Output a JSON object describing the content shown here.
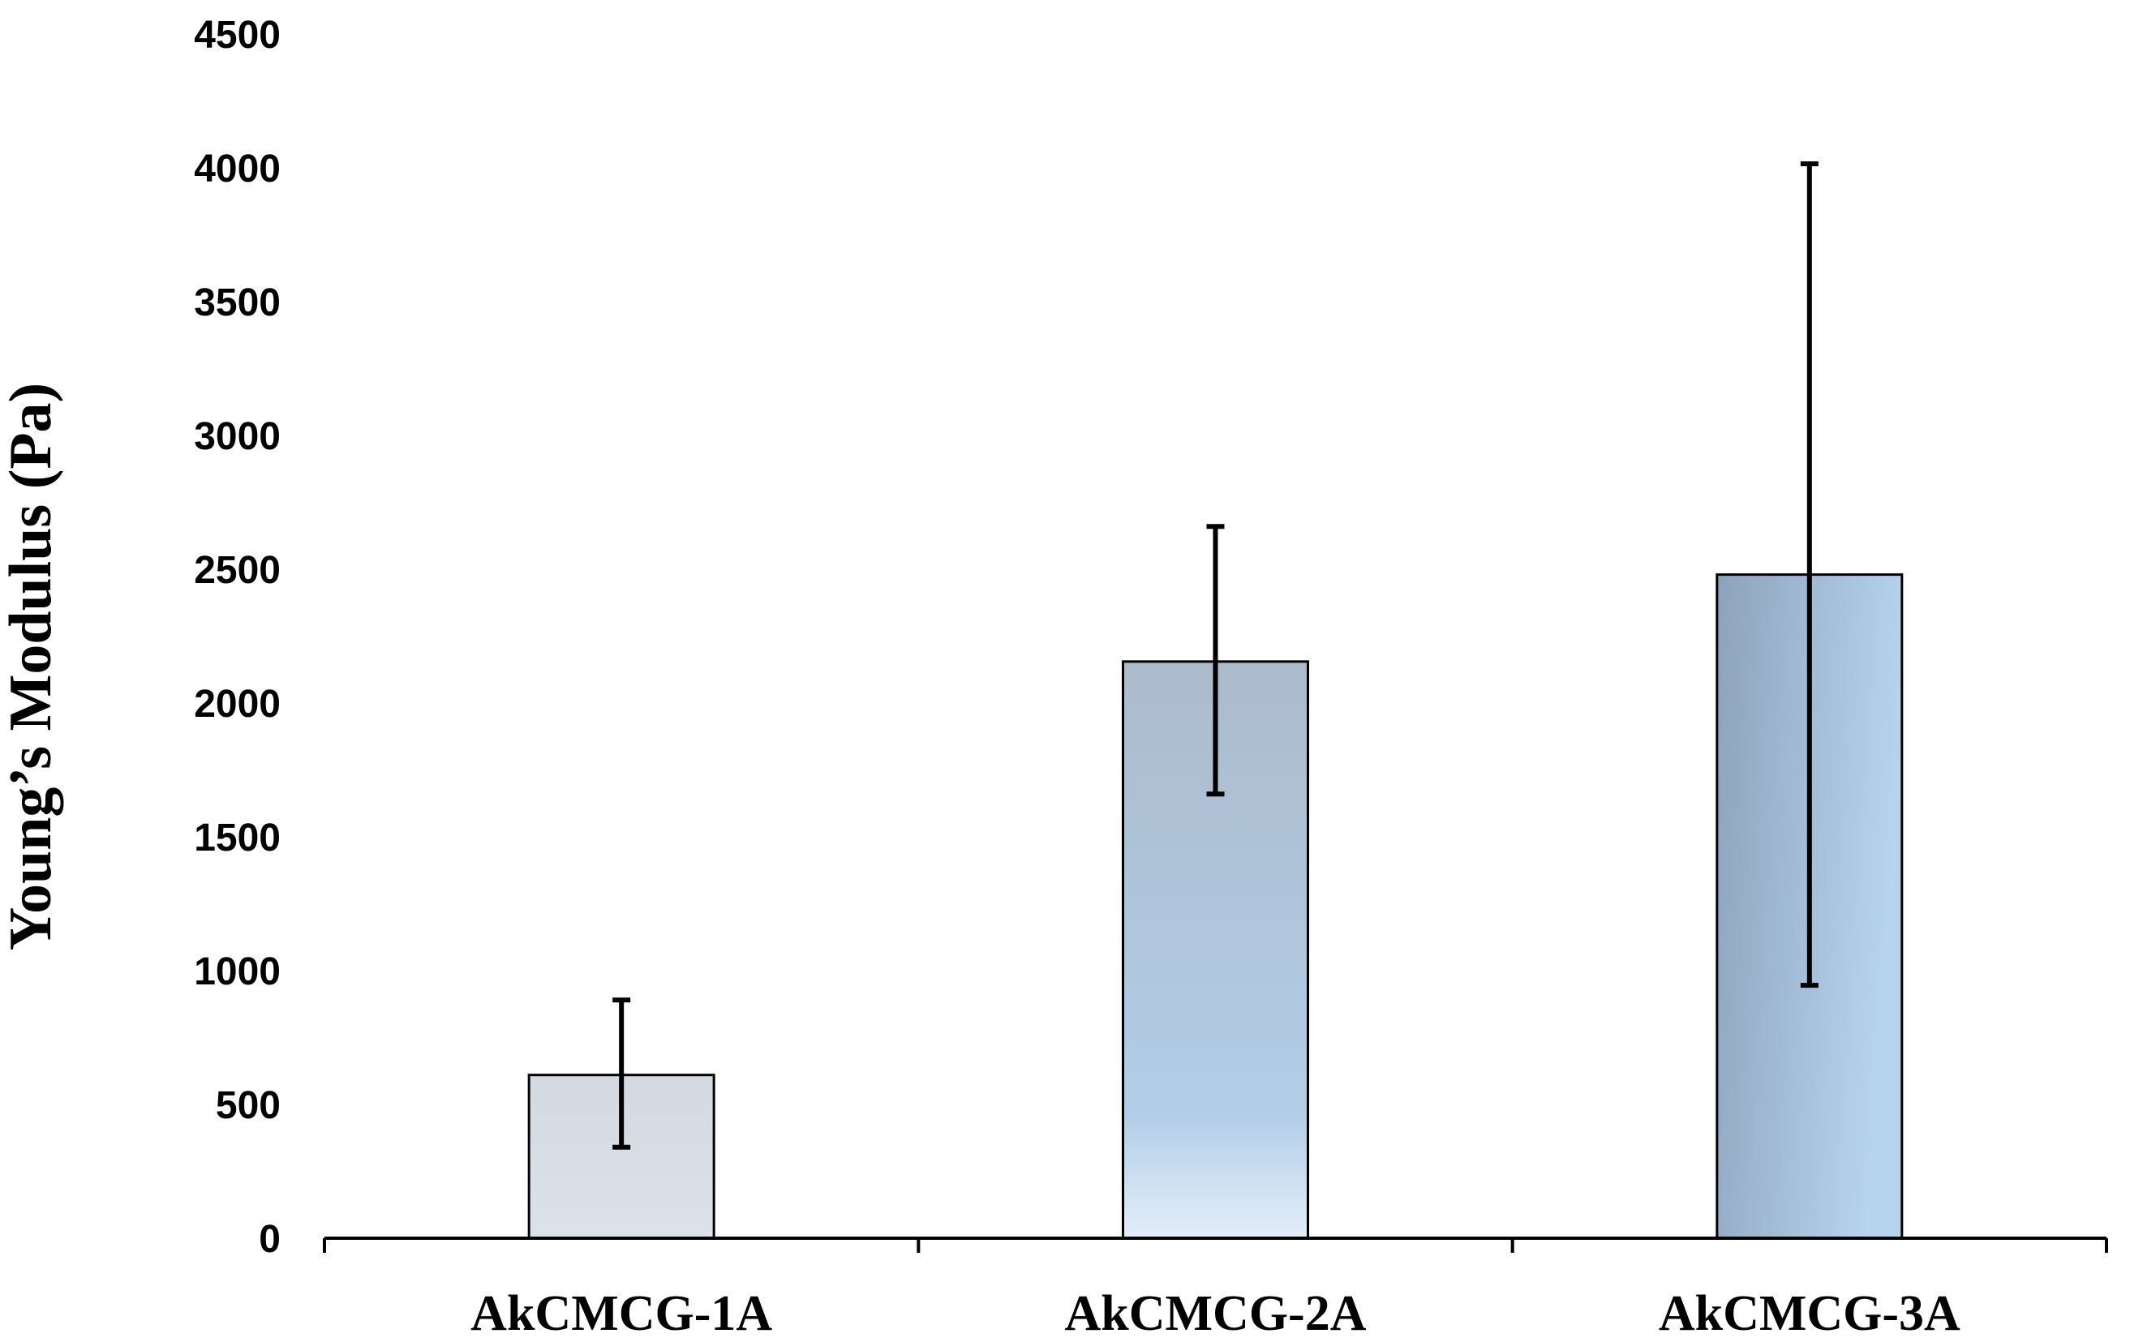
{
  "chart_data": {
    "type": "bar",
    "title": "",
    "xlabel": "",
    "ylabel": "Young’s Modulus (Pa)",
    "ylim": [
      0,
      4500
    ],
    "yticks": [
      "0",
      "500",
      "1000",
      "1500",
      "2000",
      "2500",
      "3000",
      "3500",
      "4000",
      "4500"
    ],
    "categories": [
      "AkCMCG-1A",
      "AkCMCG-2A",
      "AkCMCG-3A"
    ],
    "values": [
      610,
      2155,
      2480
    ],
    "error_low": [
      340,
      1660,
      945
    ],
    "error_high": [
      890,
      2660,
      4015
    ],
    "grid": false,
    "legend": "none",
    "colors": {
      "axis": "#000000",
      "bar_outline": "#000000",
      "error_bar": "#000000",
      "bar1_top": "#d3d9e1",
      "bar1_bottom": "#dce2ea",
      "bar2_top": "#acbbcc",
      "bar2_mid": "#b2cde7",
      "bar2_bottom": "#e2eef9",
      "bar3_left": "#8da2bb",
      "bar3_right": "#b7d4ee"
    }
  }
}
